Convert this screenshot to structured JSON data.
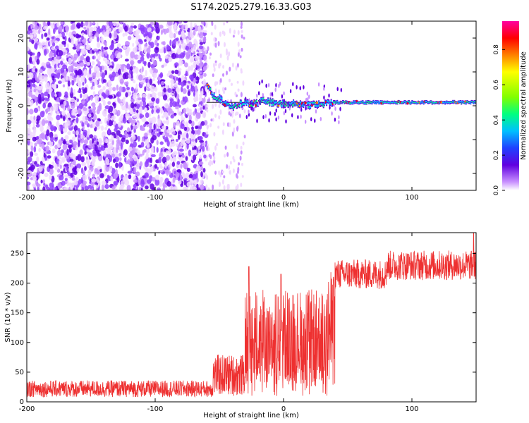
{
  "title": "S174.2025.279.16.33.G03",
  "colors": {
    "snr_line": "#ee3030",
    "axis": "#000000",
    "scatter_colormap": [
      "#f0d8ff",
      "#c890ff",
      "#9040ff",
      "#6000e0",
      "#2040ff",
      "#00c0ff",
      "#00ff80",
      "#ffff00",
      "#ff8000",
      "#ff0000",
      "#ff00a0"
    ]
  },
  "chart_data": [
    {
      "type": "heatmap",
      "title": "S174.2025.279.16.33.G03",
      "xlabel": "Height of straight line (km)",
      "ylabel": "Frequency (Hz)",
      "xlim": [
        -200,
        150
      ],
      "ylim": [
        -25,
        25
      ],
      "xticks": [
        -200,
        -100,
        0,
        100
      ],
      "yticks": [
        -20,
        -10,
        0,
        10,
        20
      ],
      "colorbar": {
        "label": "Normalized spectral amplitude",
        "range": [
          0,
          1
        ],
        "ticks": [
          "0.0",
          "0.2",
          "0.4",
          "0.6",
          "0.8"
        ]
      },
      "description_points": {
        "noise_region_x": [
          -200,
          -60
        ],
        "sparse_region_x": [
          -60,
          -30
        ],
        "signal_track": {
          "x": [
            -60,
            -55,
            -50,
            -45,
            -40,
            -35,
            -30,
            -25,
            -20,
            -15,
            -10,
            -5,
            0,
            10,
            20,
            30,
            40,
            60,
            80,
            100,
            120,
            150
          ],
          "freq": [
            6,
            3,
            2,
            0.5,
            -0.5,
            0.5,
            1,
            0.5,
            1,
            1.5,
            1,
            0.5,
            0.5,
            0.5,
            0.2,
            0.5,
            1,
            1,
            1,
            1,
            1,
            1
          ]
        }
      }
    },
    {
      "type": "line",
      "xlabel": "Height of straight line (km)",
      "ylabel": "SNR (10 * v/v)",
      "xlim": [
        -200,
        150
      ],
      "ylim": [
        0,
        285
      ],
      "xticks": [
        -200,
        -100,
        0,
        100
      ],
      "yticks": [
        0,
        50,
        100,
        150,
        200,
        250
      ],
      "series": [
        {
          "name": "SNR",
          "segments": [
            {
              "x_range": [
                -200,
                -55
              ],
              "mean": 22,
              "spread": 14
            },
            {
              "x_range": [
                -55,
                -30
              ],
              "mean": 45,
              "spread": 35
            },
            {
              "x_range": [
                -30,
                35
              ],
              "mean": 110,
              "spread": 80
            },
            {
              "x_range": [
                35,
                40
              ],
              "mean": 120,
              "spread": 100
            },
            {
              "x_range": [
                40,
                80
              ],
              "mean": 215,
              "spread": 25
            },
            {
              "x_range": [
                80,
                150
              ],
              "mean": 230,
              "spread": 25
            }
          ],
          "peaks": [
            {
              "x": -27,
              "y": 228
            },
            {
              "x": -2,
              "y": 215
            },
            {
              "x": 39,
              "y": 210
            },
            {
              "x": 148,
              "y": 285
            }
          ]
        }
      ]
    }
  ]
}
